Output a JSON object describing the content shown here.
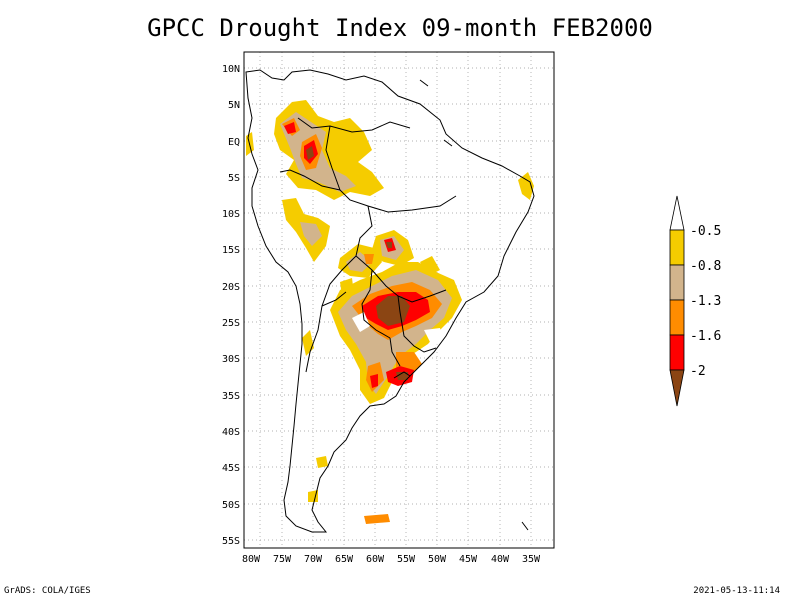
{
  "title": "GPCC Drought Index 09-month FEB2000",
  "map": {
    "lat_labels": [
      "10N",
      "5N",
      "EQ",
      "5S",
      "10S",
      "15S",
      "20S",
      "25S",
      "30S",
      "35S",
      "40S",
      "45S",
      "50S",
      "55S"
    ],
    "lon_labels": [
      "80W",
      "75W",
      "70W",
      "65W",
      "60W",
      "55W",
      "50W",
      "45W",
      "40W",
      "35W"
    ]
  },
  "colorbar": {
    "labels": [
      "-0.5",
      "-0.8",
      "-1.3",
      "-1.6",
      "-2"
    ],
    "colors": {
      "white": "#ffffff",
      "gold": "#f5cc00",
      "tan": "#d2b48c",
      "orange": "#ff8c00",
      "red": "#ff0000",
      "brown": "#8b4513"
    }
  },
  "footer": {
    "left": "GrADS: COLA/IGES",
    "right": "2021-05-13-11:14"
  }
}
